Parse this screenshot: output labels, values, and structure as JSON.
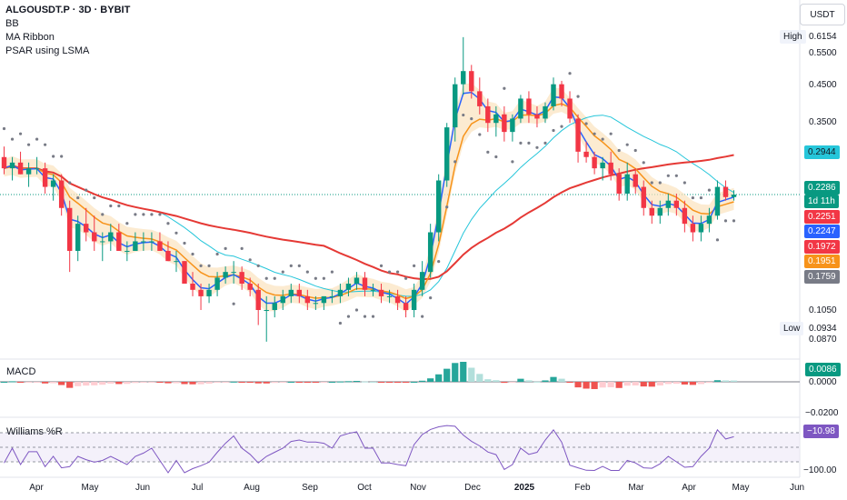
{
  "legend": {
    "symbol": "ALGOUSDT.P · 3D · BYBIT",
    "bb": "BB",
    "ma_ribbon": "MA Ribbon",
    "psar": "PSAR using LSMA"
  },
  "axis_unit": "USDT",
  "high_label": "High",
  "high_value": "0.6154",
  "low_label": "Low",
  "low_value": "0.0934",
  "y_ticks": [
    "0.5500",
    "0.4500",
    "0.3500",
    "0.1050",
    "0.0870"
  ],
  "price_tags": [
    {
      "value": "0.2944",
      "color": "#26c6da",
      "text_color": "#131722"
    },
    {
      "value": "0.2286",
      "color": "#089981",
      "text_color": "#ffffff"
    },
    {
      "value": "1d 11h",
      "color": "#089981",
      "text_color": "#ffffff"
    },
    {
      "value": "0.2251",
      "color": "#f23645",
      "text_color": "#ffffff"
    },
    {
      "value": "0.2247",
      "color": "#2962ff",
      "text_color": "#ffffff"
    },
    {
      "value": "0.1972",
      "color": "#f23645",
      "text_color": "#ffffff"
    },
    {
      "value": "0.1951",
      "color": "#f7931a",
      "text_color": "#ffffff"
    },
    {
      "value": "0.1759",
      "color": "#787b86",
      "text_color": "#ffffff"
    }
  ],
  "macd_label": "MACD",
  "macd_tag": "0.0086",
  "macd_ticks": [
    "0.0000",
    "−0.0200"
  ],
  "williams_label": "Williams %R",
  "williams_tag": "−10.98",
  "williams_ticks": [
    "−100.00"
  ],
  "x_labels": [
    "Apr",
    "May",
    "Jun",
    "Jul",
    "Aug",
    "Sep",
    "Oct",
    "Nov",
    "Dec",
    "2025",
    "Feb",
    "Mar",
    "Apr",
    "May",
    "Jun"
  ],
  "x_label_bold": "2025",
  "colors": {
    "up": "#089981",
    "down": "#f23645",
    "blue": "#2962ff",
    "orange": "#f7931a",
    "red_ma": "#e53935",
    "bb_mid": "#26c6da",
    "psar": "#787b86",
    "hist_up": "#26a69a",
    "hist_up_light": "#b2dfdb",
    "hist_dn": "#ef5350",
    "hist_dn_light": "#ffcdd2",
    "wr": "#7e57c2"
  },
  "chart_data": {
    "type": "candlestick",
    "y_scale": "log",
    "ylim": [
      0.082,
      0.66
    ],
    "legend_placement": "top-left",
    "ohlc": [
      [
        0.29,
        0.31,
        0.26,
        0.27
      ],
      [
        0.27,
        0.29,
        0.25,
        0.28
      ],
      [
        0.28,
        0.3,
        0.26,
        0.26
      ],
      [
        0.26,
        0.28,
        0.24,
        0.27
      ],
      [
        0.27,
        0.29,
        0.26,
        0.27
      ],
      [
        0.27,
        0.28,
        0.23,
        0.24
      ],
      [
        0.24,
        0.26,
        0.22,
        0.25
      ],
      [
        0.25,
        0.26,
        0.2,
        0.21
      ],
      [
        0.21,
        0.22,
        0.14,
        0.16
      ],
      [
        0.16,
        0.2,
        0.15,
        0.19
      ],
      [
        0.19,
        0.21,
        0.17,
        0.18
      ],
      [
        0.18,
        0.2,
        0.16,
        0.17
      ],
      [
        0.17,
        0.18,
        0.15,
        0.17
      ],
      [
        0.17,
        0.19,
        0.16,
        0.18
      ],
      [
        0.18,
        0.19,
        0.16,
        0.16
      ],
      [
        0.16,
        0.17,
        0.15,
        0.16
      ],
      [
        0.16,
        0.18,
        0.16,
        0.17
      ],
      [
        0.17,
        0.18,
        0.16,
        0.17
      ],
      [
        0.17,
        0.18,
        0.16,
        0.17
      ],
      [
        0.17,
        0.18,
        0.16,
        0.16
      ],
      [
        0.16,
        0.17,
        0.15,
        0.15
      ],
      [
        0.15,
        0.16,
        0.14,
        0.15
      ],
      [
        0.15,
        0.15,
        0.13,
        0.13
      ],
      [
        0.13,
        0.14,
        0.12,
        0.125
      ],
      [
        0.125,
        0.13,
        0.11,
        0.12
      ],
      [
        0.12,
        0.13,
        0.115,
        0.125
      ],
      [
        0.125,
        0.14,
        0.12,
        0.135
      ],
      [
        0.135,
        0.145,
        0.13,
        0.14
      ],
      [
        0.14,
        0.15,
        0.13,
        0.14
      ],
      [
        0.14,
        0.145,
        0.125,
        0.13
      ],
      [
        0.13,
        0.135,
        0.12,
        0.125
      ],
      [
        0.125,
        0.13,
        0.1,
        0.11
      ],
      [
        0.11,
        0.12,
        0.09,
        0.11
      ],
      [
        0.11,
        0.12,
        0.105,
        0.115
      ],
      [
        0.115,
        0.125,
        0.11,
        0.12
      ],
      [
        0.12,
        0.13,
        0.115,
        0.125
      ],
      [
        0.125,
        0.13,
        0.115,
        0.12
      ],
      [
        0.12,
        0.125,
        0.11,
        0.115
      ],
      [
        0.115,
        0.12,
        0.11,
        0.115
      ],
      [
        0.115,
        0.12,
        0.11,
        0.12
      ],
      [
        0.12,
        0.125,
        0.115,
        0.12
      ],
      [
        0.12,
        0.13,
        0.115,
        0.125
      ],
      [
        0.125,
        0.135,
        0.12,
        0.13
      ],
      [
        0.13,
        0.14,
        0.125,
        0.135
      ],
      [
        0.135,
        0.14,
        0.12,
        0.125
      ],
      [
        0.125,
        0.13,
        0.12,
        0.125
      ],
      [
        0.125,
        0.13,
        0.115,
        0.12
      ],
      [
        0.12,
        0.125,
        0.115,
        0.12
      ],
      [
        0.12,
        0.125,
        0.11,
        0.115
      ],
      [
        0.115,
        0.12,
        0.105,
        0.11
      ],
      [
        0.11,
        0.13,
        0.105,
        0.125
      ],
      [
        0.125,
        0.15,
        0.12,
        0.14
      ],
      [
        0.14,
        0.19,
        0.135,
        0.18
      ],
      [
        0.18,
        0.26,
        0.17,
        0.25
      ],
      [
        0.25,
        0.36,
        0.24,
        0.35
      ],
      [
        0.35,
        0.48,
        0.32,
        0.46
      ],
      [
        0.46,
        0.62,
        0.43,
        0.5
      ],
      [
        0.5,
        0.52,
        0.42,
        0.44
      ],
      [
        0.44,
        0.48,
        0.38,
        0.4
      ],
      [
        0.4,
        0.42,
        0.34,
        0.36
      ],
      [
        0.36,
        0.4,
        0.33,
        0.38
      ],
      [
        0.38,
        0.4,
        0.32,
        0.34
      ],
      [
        0.34,
        0.38,
        0.32,
        0.37
      ],
      [
        0.37,
        0.43,
        0.36,
        0.42
      ],
      [
        0.42,
        0.44,
        0.36,
        0.38
      ],
      [
        0.38,
        0.4,
        0.35,
        0.37
      ],
      [
        0.37,
        0.41,
        0.36,
        0.4
      ],
      [
        0.4,
        0.48,
        0.39,
        0.46
      ],
      [
        0.46,
        0.47,
        0.4,
        0.42
      ],
      [
        0.42,
        0.44,
        0.36,
        0.37
      ],
      [
        0.37,
        0.38,
        0.28,
        0.3
      ],
      [
        0.3,
        0.32,
        0.28,
        0.29
      ],
      [
        0.29,
        0.3,
        0.26,
        0.27
      ],
      [
        0.27,
        0.29,
        0.25,
        0.28
      ],
      [
        0.28,
        0.3,
        0.25,
        0.26
      ],
      [
        0.26,
        0.27,
        0.22,
        0.23
      ],
      [
        0.23,
        0.28,
        0.22,
        0.26
      ],
      [
        0.26,
        0.27,
        0.23,
        0.24
      ],
      [
        0.24,
        0.25,
        0.2,
        0.21
      ],
      [
        0.21,
        0.22,
        0.19,
        0.2
      ],
      [
        0.2,
        0.22,
        0.19,
        0.21
      ],
      [
        0.21,
        0.23,
        0.2,
        0.22
      ],
      [
        0.22,
        0.23,
        0.2,
        0.21
      ],
      [
        0.21,
        0.22,
        0.18,
        0.19
      ],
      [
        0.19,
        0.2,
        0.17,
        0.18
      ],
      [
        0.18,
        0.2,
        0.17,
        0.19
      ],
      [
        0.19,
        0.21,
        0.18,
        0.2
      ],
      [
        0.2,
        0.25,
        0.195,
        0.24
      ],
      [
        0.24,
        0.25,
        0.22,
        0.225
      ],
      [
        0.225,
        0.235,
        0.22,
        0.2286
      ]
    ],
    "macd_ylim": [
      -0.03,
      0.02
    ],
    "williams_ylim": [
      -100,
      0
    ]
  }
}
